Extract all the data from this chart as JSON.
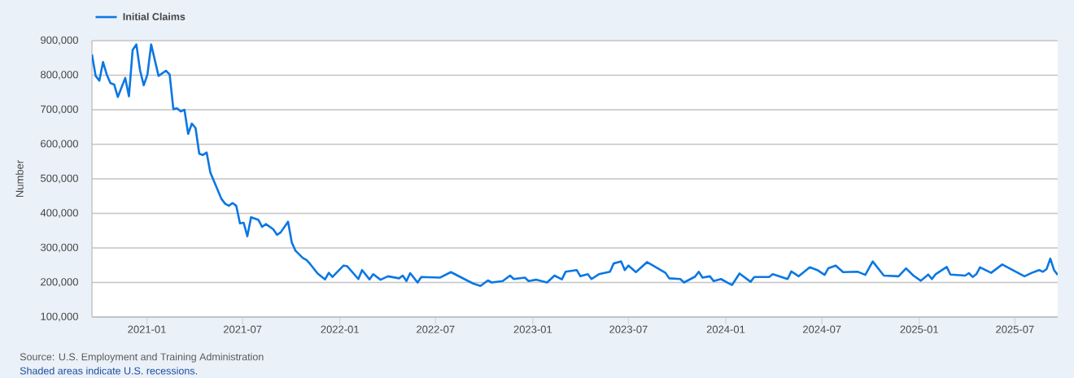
{
  "chart_data": {
    "type": "line",
    "ylabel": "Number",
    "x": [
      "2020-09-19",
      "2020-09-26",
      "2020-10-03",
      "2020-10-10",
      "2020-10-17",
      "2020-10-24",
      "2020-10-31",
      "2020-11-07",
      "2020-11-21",
      "2020-11-28",
      "2020-12-05",
      "2020-12-12",
      "2020-12-19",
      "2020-12-26",
      "2021-01-02",
      "2021-01-09",
      "2021-01-23",
      "2021-02-06",
      "2021-02-13",
      "2021-02-20",
      "2021-02-27",
      "2021-03-06",
      "2021-03-13",
      "2021-03-20",
      "2021-03-27",
      "2021-04-03",
      "2021-04-10",
      "2021-04-17",
      "2021-04-24",
      "2021-05-01",
      "2021-05-22",
      "2021-05-29",
      "2021-06-05",
      "2021-06-12",
      "2021-06-19",
      "2021-06-26",
      "2021-07-03",
      "2021-07-10",
      "2021-07-17",
      "2021-07-31",
      "2021-08-07",
      "2021-08-14",
      "2021-08-28",
      "2021-09-04",
      "2021-09-11",
      "2021-09-25",
      "2021-10-02",
      "2021-10-09",
      "2021-10-23",
      "2021-10-30",
      "2021-11-06",
      "2021-11-20",
      "2021-12-04",
      "2021-12-11",
      "2021-12-18",
      "2022-01-08",
      "2022-01-15",
      "2022-02-05",
      "2022-02-12",
      "2022-02-26",
      "2022-03-05",
      "2022-03-19",
      "2022-04-02",
      "2022-04-23",
      "2022-04-30",
      "2022-05-07",
      "2022-05-14",
      "2022-05-28",
      "2022-06-04",
      "2022-07-09",
      "2022-07-30",
      "2022-09-10",
      "2022-09-24",
      "2022-10-08",
      "2022-10-15",
      "2022-11-05",
      "2022-11-19",
      "2022-11-26",
      "2022-12-17",
      "2022-12-24",
      "2023-01-07",
      "2023-01-28",
      "2023-02-11",
      "2023-02-25",
      "2023-03-04",
      "2023-03-25",
      "2023-04-01",
      "2023-04-15",
      "2023-04-22",
      "2023-05-06",
      "2023-05-27",
      "2023-06-03",
      "2023-06-17",
      "2023-06-24",
      "2023-07-01",
      "2023-07-15",
      "2023-08-05",
      "2023-09-09",
      "2023-09-16",
      "2023-10-07",
      "2023-10-14",
      "2023-11-04",
      "2023-11-11",
      "2023-11-18",
      "2023-12-02",
      "2023-12-09",
      "2023-12-23",
      "2024-01-06",
      "2024-01-13",
      "2024-01-27",
      "2024-02-17",
      "2024-02-24",
      "2024-03-23",
      "2024-03-30",
      "2024-04-27",
      "2024-05-04",
      "2024-05-18",
      "2024-06-08",
      "2024-06-22",
      "2024-07-06",
      "2024-07-13",
      "2024-07-27",
      "2024-08-10",
      "2024-09-07",
      "2024-09-21",
      "2024-10-05",
      "2024-10-26",
      "2024-11-23",
      "2024-12-07",
      "2024-12-21",
      "2025-01-04",
      "2025-01-18",
      "2025-01-25",
      "2025-02-01",
      "2025-02-22",
      "2025-03-01",
      "2025-03-29",
      "2025-04-05",
      "2025-04-12",
      "2025-04-19",
      "2025-04-26",
      "2025-05-17",
      "2025-06-07",
      "2025-07-19",
      "2025-08-02",
      "2025-08-16",
      "2025-08-23",
      "2025-08-30",
      "2025-09-06",
      "2025-09-13",
      "2025-09-20"
    ],
    "series": [
      {
        "name": "Initial Claims",
        "color": "#0b77e3",
        "values": [
          860000,
          798000,
          784000,
          838000,
          802000,
          777000,
          773000,
          737000,
          792000,
          739000,
          873000,
          889000,
          814000,
          771000,
          802000,
          889000,
          798000,
          813000,
          802000,
          702000,
          704000,
          695000,
          700000,
          630000,
          660000,
          647000,
          573000,
          569000,
          576000,
          518000,
          442000,
          428000,
          422000,
          430000,
          422000,
          371000,
          373000,
          334000,
          389000,
          381000,
          361000,
          369000,
          354000,
          338000,
          345000,
          376000,
          316000,
          292000,
          271000,
          265000,
          253000,
          226000,
          209000,
          228000,
          216000,
          249000,
          247000,
          210000,
          236000,
          209000,
          224000,
          208000,
          218000,
          212000,
          220000,
          204000,
          227000,
          200000,
          216000,
          214000,
          230000,
          197000,
          190000,
          206000,
          200000,
          204000,
          220000,
          210000,
          214000,
          204000,
          208000,
          200000,
          220000,
          209000,
          231000,
          236000,
          218000,
          224000,
          210000,
          224000,
          231000,
          255000,
          261000,
          236000,
          249000,
          230000,
          259000,
          228000,
          212000,
          210000,
          200000,
          217000,
          231000,
          214000,
          218000,
          204000,
          210000,
          198000,
          193000,
          226000,
          202000,
          216000,
          216000,
          224000,
          210000,
          232000,
          218000,
          244000,
          236000,
          222000,
          241000,
          249000,
          230000,
          231000,
          222000,
          261000,
          220000,
          218000,
          241000,
          220000,
          205000,
          223000,
          210000,
          224000,
          245000,
          223000,
          220000,
          227000,
          216000,
          224000,
          244000,
          228000,
          252000,
          218000,
          228000,
          236000,
          231000,
          239000,
          269000,
          236000,
          222000
        ]
      }
    ],
    "xlim": [
      "2020-09-19",
      "2025-09-20"
    ],
    "xticks": [
      "2021-01",
      "2021-07",
      "2022-01",
      "2022-07",
      "2023-01",
      "2023-07",
      "2024-01",
      "2024-07",
      "2025-01",
      "2025-07"
    ],
    "ylim": [
      100000,
      900000
    ],
    "yticks": [
      {
        "value": 100000,
        "label": "100,000"
      },
      {
        "value": 200000,
        "label": "200,000"
      },
      {
        "value": 300000,
        "label": "300,000"
      },
      {
        "value": 400000,
        "label": "400,000"
      },
      {
        "value": 500000,
        "label": "500,000"
      },
      {
        "value": 600000,
        "label": "600,000"
      },
      {
        "value": 700000,
        "label": "700,000"
      },
      {
        "value": 800000,
        "label": "800,000"
      },
      {
        "value": 900000,
        "label": "900,000"
      }
    ],
    "grid": "y",
    "legend": "top left",
    "annotations": [
      "Source: U.S. Employment and Training Administration",
      "Shaded areas indicate U.S. recessions."
    ]
  }
}
